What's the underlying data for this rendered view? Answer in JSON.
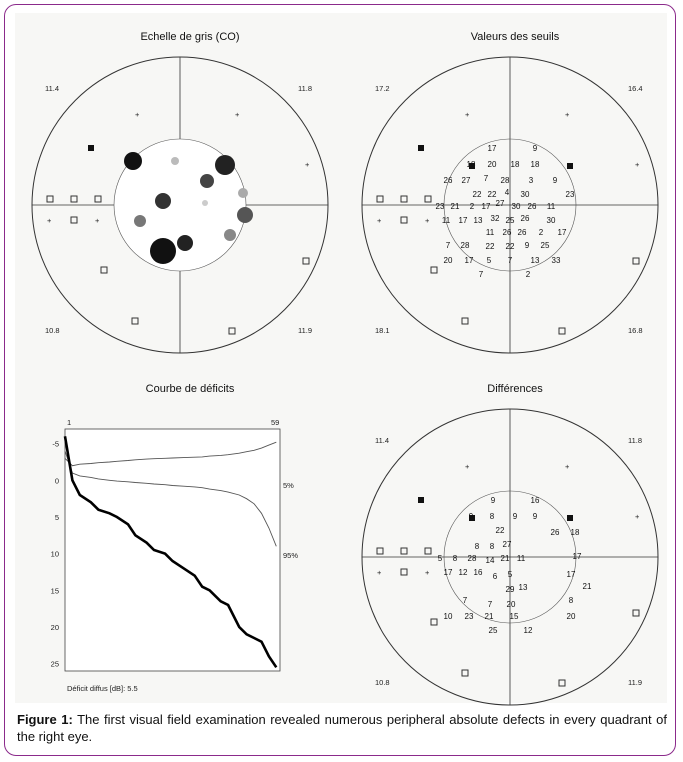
{
  "panels": {
    "gray": {
      "title": "Echelle de gris (CO)",
      "corners": {
        "tl": "11.4",
        "tr": "11.8",
        "bl": "10.8",
        "br": "11.9"
      }
    },
    "thresholds": {
      "title": "Valeurs des seuils",
      "corners": {
        "tl": "17.2",
        "tr": "16.4",
        "bl": "18.1",
        "br": "16.8"
      }
    },
    "deficit": {
      "title": "Courbe de déficits",
      "x_start": "1",
      "x_end": "59",
      "band_5": "5%",
      "band_95": "95%",
      "footer": "Déficit diffus [dB]:  5.5"
    },
    "differences": {
      "title": "Différences",
      "corners": {
        "tl": "11.4",
        "tr": "11.8",
        "bl": "10.8",
        "br": "11.9"
      }
    }
  },
  "chart_data": {
    "type": "line",
    "title": "Courbe de déficits",
    "x": [
      1,
      3,
      5,
      8,
      10,
      13,
      15,
      18,
      20,
      23,
      25,
      28,
      30,
      33,
      36,
      38,
      40,
      43,
      45,
      48,
      50,
      52,
      54,
      56,
      58
    ],
    "y_ticks": [
      "-5",
      "0",
      "5",
      "10",
      "15",
      "20",
      "25"
    ],
    "ylim": [
      -7,
      26
    ],
    "xlim": [
      1,
      59
    ],
    "series": [
      {
        "name": "5%",
        "values": [
          -3,
          -2,
          -2.2,
          -2.3,
          -2.4,
          -2.5,
          -2.6,
          -2.7,
          -2.8,
          -2.9,
          -2.95,
          -3,
          -3.05,
          -3.1,
          -3.15,
          -3.2,
          -3.3,
          -3.4,
          -3.5,
          -3.7,
          -3.9,
          -4.1,
          -4.4,
          -4.8,
          -5.2
        ]
      },
      {
        "name": "95%",
        "values": [
          -4,
          -1,
          -0.6,
          -0.4,
          -0.2,
          0,
          0.1,
          0.2,
          0.3,
          0.4,
          0.5,
          0.6,
          0.7,
          0.8,
          0.9,
          1.0,
          1.2,
          1.4,
          1.6,
          2.0,
          2.5,
          3.2,
          4.5,
          6.5,
          9
        ]
      },
      {
        "name": "",
        "values": [
          -6,
          0,
          2,
          3,
          4,
          4.5,
          5,
          6,
          7.5,
          8.5,
          9.5,
          10,
          11,
          12,
          13,
          14.5,
          15,
          16.5,
          17,
          20,
          21,
          21.5,
          22,
          24,
          25.5
        ]
      }
    ]
  },
  "thresholds_grid": [
    {
      "v": "17"
    },
    {
      "v": "9"
    },
    {
      "v": "18"
    },
    {
      "v": "20"
    },
    {
      "v": "18"
    },
    {
      "v": "18"
    },
    {
      "v": "26"
    },
    {
      "v": "27"
    },
    {
      "v": "7"
    },
    {
      "v": "28"
    },
    {
      "v": "3"
    },
    {
      "v": "9"
    },
    {
      "v": "22"
    },
    {
      "v": "22"
    },
    {
      "v": "4"
    },
    {
      "v": "30"
    },
    {
      "v": "23"
    },
    {
      "v": "23"
    },
    {
      "v": "21"
    },
    {
      "v": "2"
    },
    {
      "v": "17"
    },
    {
      "v": "27"
    },
    {
      "v": "30"
    },
    {
      "v": "26"
    },
    {
      "v": "11"
    },
    {
      "v": "11"
    },
    {
      "v": "17"
    },
    {
      "v": "13"
    },
    {
      "v": "32"
    },
    {
      "v": "25"
    },
    {
      "v": "26"
    },
    {
      "v": "30"
    },
    {
      "v": "11"
    },
    {
      "v": "26"
    },
    {
      "v": "26"
    },
    {
      "v": "2"
    },
    {
      "v": "17"
    },
    {
      "v": "7"
    },
    {
      "v": "28"
    },
    {
      "v": "22"
    },
    {
      "v": "22"
    },
    {
      "v": "9"
    },
    {
      "v": "25"
    },
    {
      "v": "20"
    },
    {
      "v": "17"
    },
    {
      "v": "5"
    },
    {
      "v": "7"
    },
    {
      "v": "13"
    },
    {
      "v": "33"
    },
    {
      "v": "7"
    },
    {
      "v": "2"
    },
    {
      "v": "15"
    }
  ],
  "differences_grid": [
    {
      "v": "9"
    },
    {
      "v": "16"
    },
    {
      "v": "9"
    },
    {
      "v": "8"
    },
    {
      "v": "9"
    },
    {
      "v": "9"
    },
    {
      "v": "22"
    },
    {
      "v": "26"
    },
    {
      "v": "18"
    },
    {
      "v": "8"
    },
    {
      "v": "8"
    },
    {
      "v": "27"
    },
    {
      "v": "5"
    },
    {
      "v": "8"
    },
    {
      "v": "28"
    },
    {
      "v": "14"
    },
    {
      "v": "21"
    },
    {
      "v": "11"
    },
    {
      "v": "17"
    },
    {
      "v": "17"
    },
    {
      "v": "12"
    },
    {
      "v": "16"
    },
    {
      "v": "6"
    },
    {
      "v": "5"
    },
    {
      "v": "17"
    },
    {
      "v": "29"
    },
    {
      "v": "13"
    },
    {
      "v": "21"
    },
    {
      "v": "7"
    },
    {
      "v": "7"
    },
    {
      "v": "20"
    },
    {
      "v": "8"
    },
    {
      "v": "10"
    },
    {
      "v": "23"
    },
    {
      "v": "21"
    },
    {
      "v": "15"
    },
    {
      "v": "20"
    },
    {
      "v": "25"
    },
    {
      "v": "12"
    }
  ],
  "caption": {
    "label": "Figure 1:",
    "text": " The first visual field examination revealed numerous peripheral absolute defects in every quadrant of the right eye."
  }
}
